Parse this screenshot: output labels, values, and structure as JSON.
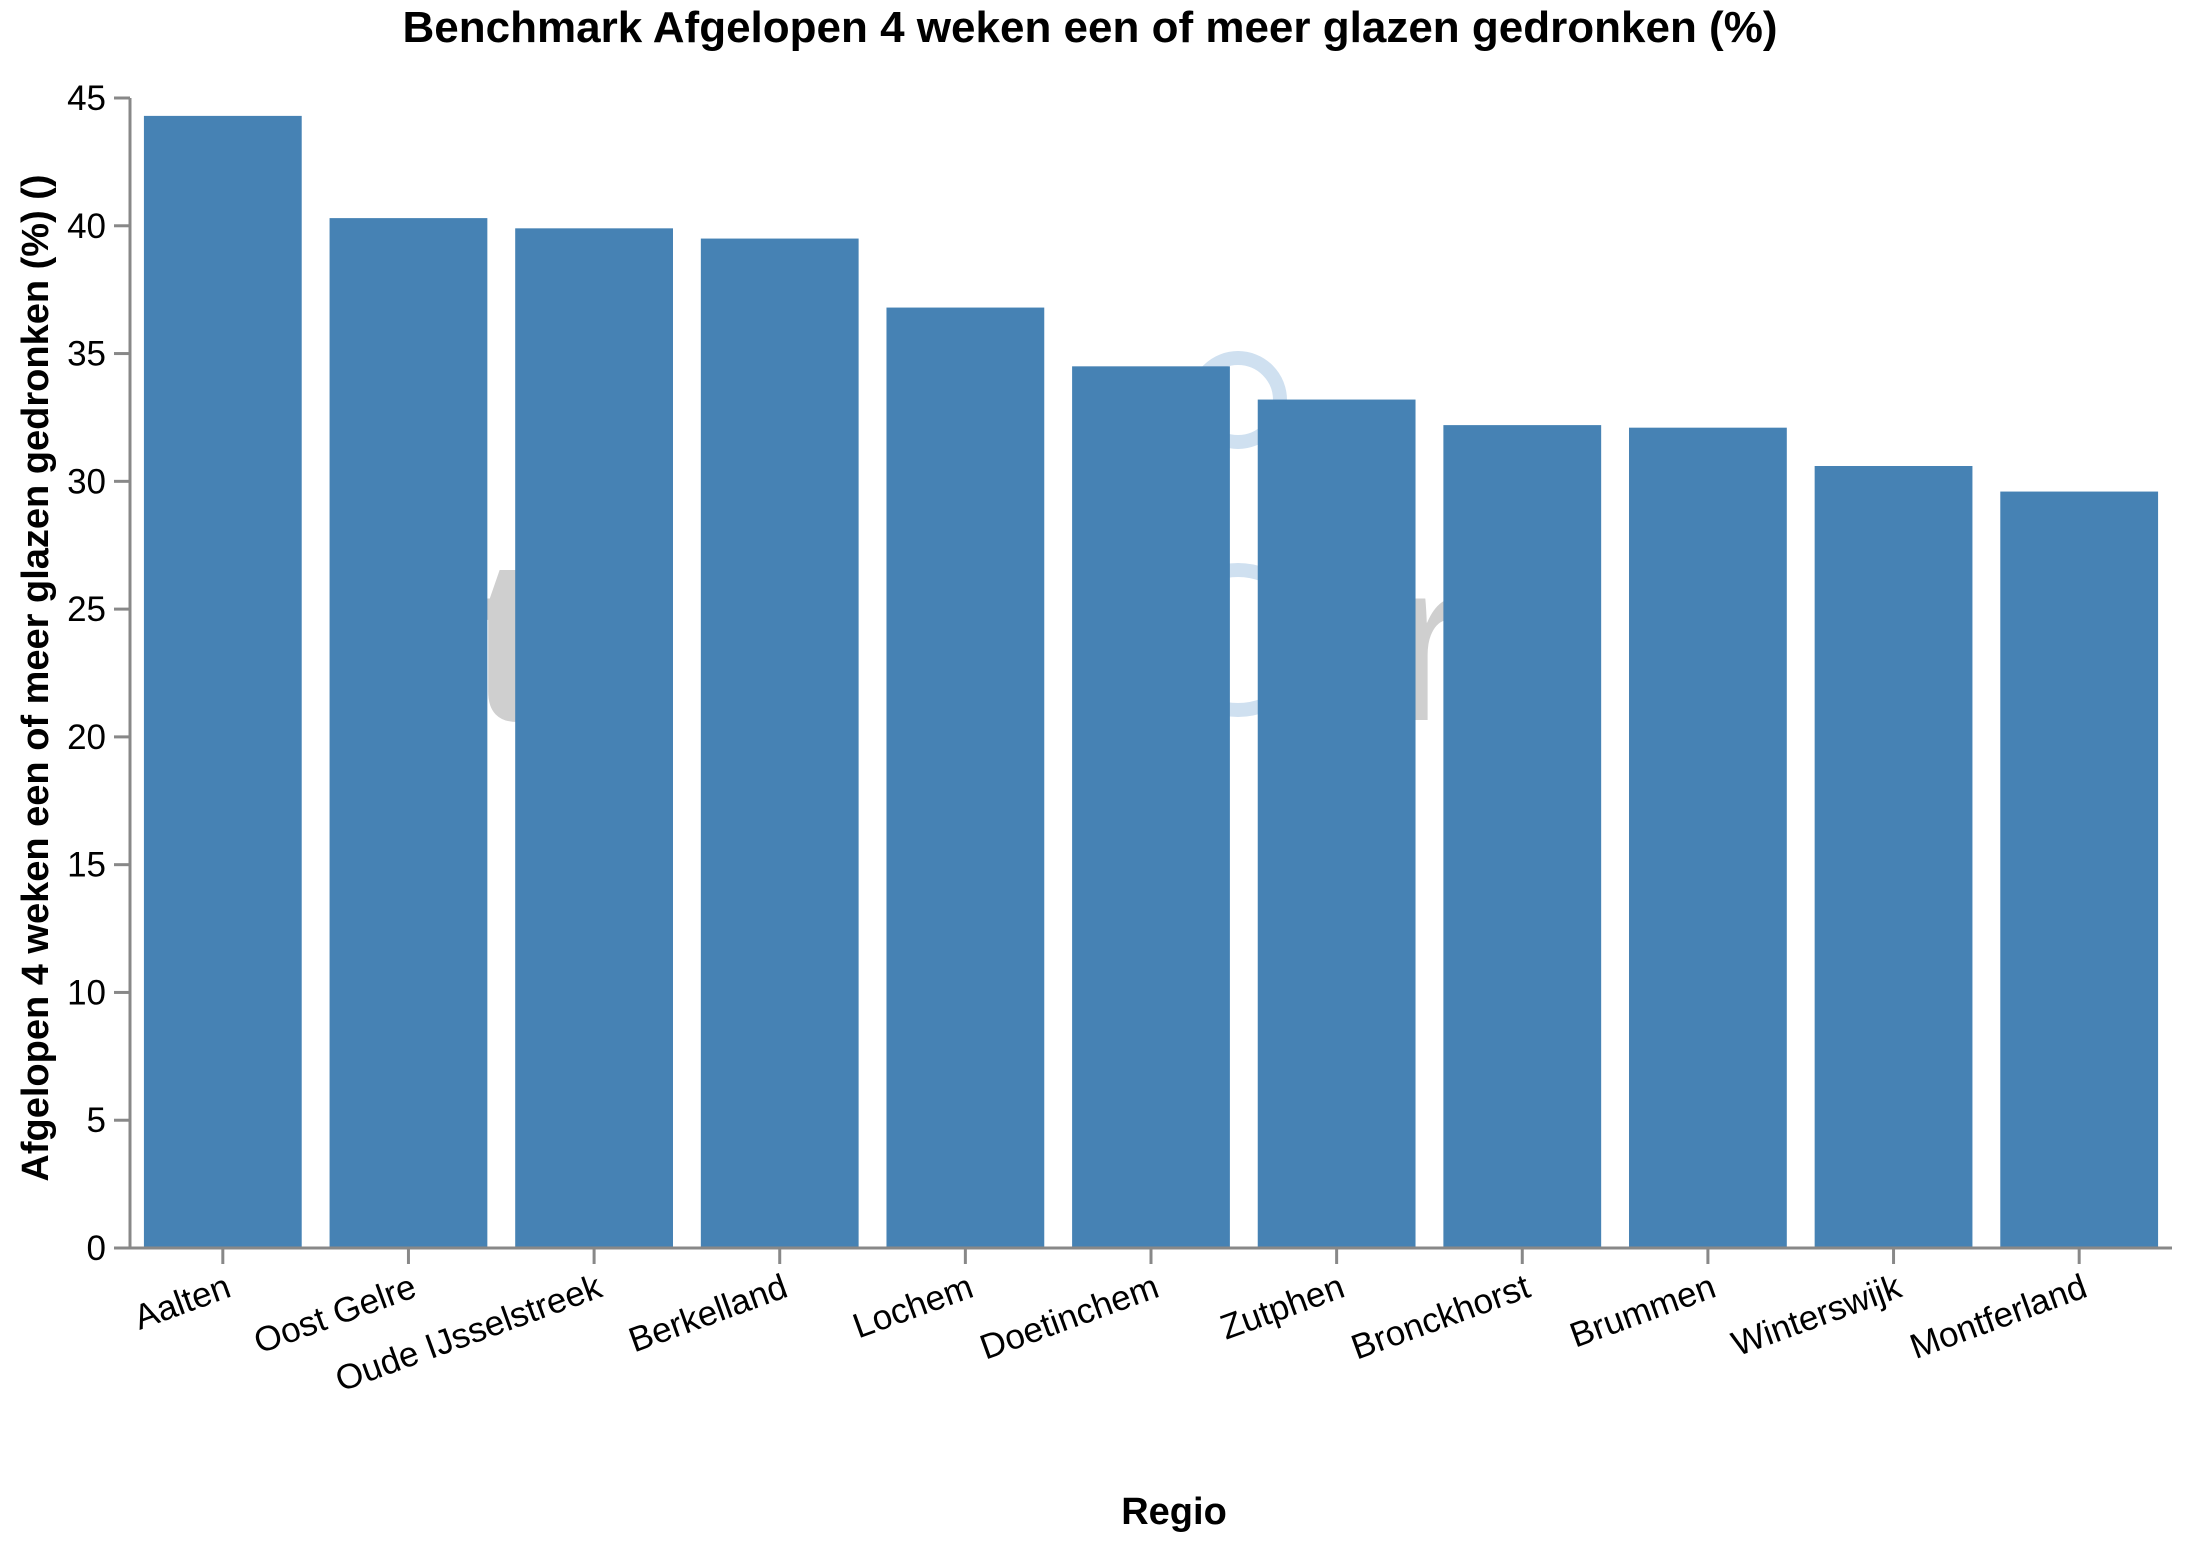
{
  "chart_data": {
    "type": "bar",
    "title": "Benchmark Afgelopen 4 weken een of meer glazen gedronken (%)",
    "xlabel": "Regio",
    "ylabel": "Afgelopen 4 weken een of meer glazen gedronken (%)  ()",
    "categories": [
      "Aalten",
      "Oost Gelre",
      "Oude IJsselstreek",
      "Berkelland",
      "Lochem",
      "Doetinchem",
      "Zutphen",
      "Bronckhorst",
      "Brummen",
      "Winterswijk",
      "Montferland"
    ],
    "values": [
      44.3,
      40.3,
      39.9,
      39.5,
      36.8,
      34.5,
      33.2,
      32.2,
      32.1,
      30.6,
      29.6
    ],
    "ylim": [
      0,
      45
    ],
    "yticks": [
      0,
      5,
      10,
      15,
      20,
      25,
      30,
      35,
      40,
      45
    ],
    "grid": false,
    "legend": "none",
    "bar_color": "#4682b4",
    "axis_color": "#888888"
  }
}
